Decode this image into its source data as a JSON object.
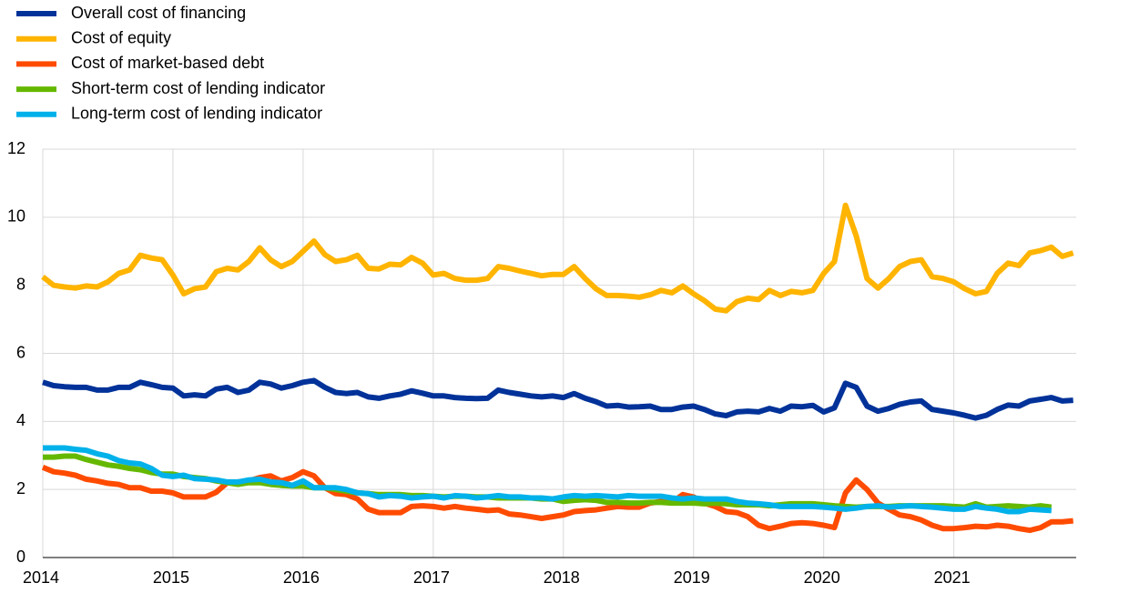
{
  "chart_data": {
    "type": "line",
    "x": [
      2014,
      2014.083,
      2014.167,
      2014.25,
      2014.333,
      2014.417,
      2014.5,
      2014.583,
      2014.667,
      2014.75,
      2014.833,
      2014.917,
      2015,
      2015.083,
      2015.167,
      2015.25,
      2015.333,
      2015.417,
      2015.5,
      2015.583,
      2015.667,
      2015.75,
      2015.833,
      2015.917,
      2016,
      2016.083,
      2016.167,
      2016.25,
      2016.333,
      2016.417,
      2016.5,
      2016.583,
      2016.667,
      2016.75,
      2016.833,
      2016.917,
      2017,
      2017.083,
      2017.167,
      2017.25,
      2017.333,
      2017.417,
      2017.5,
      2017.583,
      2017.667,
      2017.75,
      2017.833,
      2017.917,
      2018,
      2018.083,
      2018.167,
      2018.25,
      2018.333,
      2018.417,
      2018.5,
      2018.583,
      2018.667,
      2018.75,
      2018.833,
      2018.917,
      2019,
      2019.083,
      2019.167,
      2019.25,
      2019.333,
      2019.417,
      2019.5,
      2019.583,
      2019.667,
      2019.75,
      2019.833,
      2019.917,
      2020,
      2020.083,
      2020.167,
      2020.25,
      2020.333,
      2020.417,
      2020.5,
      2020.583,
      2020.667,
      2020.75,
      2020.833,
      2020.917,
      2021,
      2021.083,
      2021.167,
      2021.25,
      2021.333,
      2021.417,
      2021.5,
      2021.583,
      2021.667,
      2021.75,
      2021.833,
      2021.917
    ],
    "series": [
      {
        "name": "Overall cost of financing",
        "color": "#003299",
        "values": [
          5.15,
          5.05,
          5.02,
          5.0,
          5.0,
          4.92,
          4.92,
          5.0,
          5.0,
          5.15,
          5.08,
          5.0,
          4.98,
          4.75,
          4.78,
          4.75,
          4.95,
          5.0,
          4.85,
          4.92,
          5.15,
          5.1,
          4.98,
          5.05,
          5.15,
          5.2,
          5.0,
          4.85,
          4.82,
          4.85,
          4.72,
          4.68,
          4.75,
          4.8,
          4.9,
          4.83,
          4.75,
          4.75,
          4.7,
          4.68,
          4.67,
          4.68,
          4.92,
          4.85,
          4.8,
          4.75,
          4.72,
          4.75,
          4.7,
          4.82,
          4.68,
          4.58,
          4.45,
          4.47,
          4.42,
          4.43,
          4.45,
          4.35,
          4.35,
          4.42,
          4.45,
          4.35,
          4.22,
          4.17,
          4.28,
          4.3,
          4.28,
          4.38,
          4.3,
          4.45,
          4.43,
          4.47,
          4.28,
          4.4,
          5.12,
          5.0,
          4.45,
          4.3,
          4.38,
          4.5,
          4.57,
          4.6,
          4.35,
          4.3,
          4.25,
          4.18,
          4.1,
          4.18,
          4.35,
          4.48,
          4.45,
          4.6,
          4.65,
          4.7,
          4.6,
          4.62
        ]
      },
      {
        "name": "Cost of equity",
        "color": "#ffb400",
        "values": [
          8.25,
          8.0,
          7.95,
          7.92,
          7.98,
          7.95,
          8.1,
          8.35,
          8.45,
          8.88,
          8.8,
          8.75,
          8.3,
          7.75,
          7.9,
          7.95,
          8.4,
          8.5,
          8.45,
          8.7,
          9.1,
          8.75,
          8.55,
          8.7,
          9.0,
          9.3,
          8.9,
          8.7,
          8.75,
          8.88,
          8.5,
          8.48,
          8.62,
          8.6,
          8.82,
          8.65,
          8.3,
          8.35,
          8.2,
          8.15,
          8.15,
          8.2,
          8.55,
          8.5,
          8.42,
          8.35,
          8.28,
          8.32,
          8.32,
          8.55,
          8.2,
          7.9,
          7.7,
          7.7,
          7.68,
          7.65,
          7.72,
          7.85,
          7.78,
          7.98,
          7.75,
          7.55,
          7.3,
          7.25,
          7.52,
          7.62,
          7.58,
          7.85,
          7.7,
          7.82,
          7.78,
          7.85,
          8.35,
          8.7,
          10.35,
          9.45,
          8.2,
          7.92,
          8.2,
          8.55,
          8.7,
          8.75,
          8.25,
          8.2,
          8.1,
          7.9,
          7.75,
          7.82,
          8.35,
          8.65,
          8.58,
          8.95,
          9.02,
          9.12,
          8.85,
          8.95
        ]
      },
      {
        "name": "Cost of market-based debt",
        "color": "#ff4b00",
        "values": [
          2.65,
          2.52,
          2.48,
          2.42,
          2.3,
          2.25,
          2.18,
          2.15,
          2.05,
          2.05,
          1.95,
          1.95,
          1.9,
          1.78,
          1.78,
          1.78,
          1.92,
          2.2,
          2.22,
          2.25,
          2.35,
          2.4,
          2.25,
          2.35,
          2.52,
          2.4,
          2.05,
          1.88,
          1.85,
          1.72,
          1.42,
          1.32,
          1.32,
          1.32,
          1.5,
          1.52,
          1.5,
          1.45,
          1.5,
          1.45,
          1.42,
          1.38,
          1.4,
          1.28,
          1.25,
          1.2,
          1.15,
          1.2,
          1.25,
          1.35,
          1.38,
          1.4,
          1.45,
          1.5,
          1.48,
          1.48,
          1.6,
          1.65,
          1.62,
          1.85,
          1.78,
          1.6,
          1.5,
          1.35,
          1.32,
          1.2,
          0.95,
          0.85,
          0.92,
          1.0,
          1.02,
          1.0,
          0.95,
          0.88,
          1.9,
          2.28,
          2.0,
          1.6,
          1.42,
          1.25,
          1.2,
          1.1,
          0.95,
          0.85,
          0.85,
          0.88,
          0.92,
          0.9,
          0.95,
          0.92,
          0.85,
          0.8,
          0.88,
          1.05,
          1.05,
          1.08
        ]
      },
      {
        "name": "Short-term cost of lending indicator",
        "color": "#65b800",
        "values": [
          2.95,
          2.95,
          2.98,
          2.98,
          2.88,
          2.8,
          2.72,
          2.68,
          2.62,
          2.58,
          2.5,
          2.45,
          2.45,
          2.38,
          2.35,
          2.32,
          2.25,
          2.2,
          2.15,
          2.2,
          2.2,
          2.15,
          2.12,
          2.1,
          2.1,
          2.05,
          2.05,
          2.0,
          1.95,
          1.9,
          1.88,
          1.85,
          1.85,
          1.85,
          1.82,
          1.82,
          1.8,
          1.78,
          1.8,
          1.8,
          1.78,
          1.78,
          1.75,
          1.75,
          1.75,
          1.75,
          1.72,
          1.72,
          1.65,
          1.68,
          1.7,
          1.68,
          1.62,
          1.62,
          1.6,
          1.6,
          1.62,
          1.62,
          1.6,
          1.6,
          1.6,
          1.58,
          1.6,
          1.58,
          1.55,
          1.55,
          1.55,
          1.52,
          1.55,
          1.58,
          1.58,
          1.58,
          1.55,
          1.52,
          1.5,
          1.48,
          1.5,
          1.5,
          1.5,
          1.52,
          1.52,
          1.52,
          1.52,
          1.52,
          1.5,
          1.48,
          1.58,
          1.48,
          1.5,
          1.52,
          1.5,
          1.48,
          1.52,
          1.48,
          null,
          null
        ]
      },
      {
        "name": "Long-term cost of lending indicator",
        "color": "#00b1ea",
        "values": [
          3.22,
          3.22,
          3.22,
          3.18,
          3.15,
          3.05,
          2.98,
          2.85,
          2.78,
          2.75,
          2.62,
          2.42,
          2.38,
          2.42,
          2.32,
          2.3,
          2.28,
          2.22,
          2.22,
          2.28,
          2.3,
          2.22,
          2.2,
          2.12,
          2.25,
          2.05,
          2.05,
          2.05,
          2.0,
          1.9,
          1.88,
          1.78,
          1.82,
          1.8,
          1.75,
          1.78,
          1.8,
          1.75,
          1.82,
          1.8,
          1.75,
          1.78,
          1.82,
          1.78,
          1.78,
          1.75,
          1.75,
          1.72,
          1.78,
          1.82,
          1.8,
          1.82,
          1.8,
          1.78,
          1.82,
          1.8,
          1.8,
          1.8,
          1.75,
          1.72,
          1.75,
          1.72,
          1.72,
          1.72,
          1.65,
          1.6,
          1.58,
          1.55,
          1.5,
          1.5,
          1.5,
          1.5,
          1.48,
          1.45,
          1.42,
          1.45,
          1.5,
          1.52,
          1.48,
          1.5,
          1.52,
          1.5,
          1.48,
          1.45,
          1.42,
          1.42,
          1.5,
          1.45,
          1.42,
          1.35,
          1.35,
          1.42,
          1.4,
          1.38,
          null,
          null
        ]
      }
    ],
    "xlim": [
      2014,
      2021.94
    ],
    "xticks": [
      2014,
      2015,
      2016,
      2017,
      2018,
      2019,
      2020,
      2021
    ],
    "ylim": [
      0,
      12
    ],
    "yticks": [
      0,
      2,
      4,
      6,
      8,
      10,
      12
    ],
    "grid": true
  }
}
